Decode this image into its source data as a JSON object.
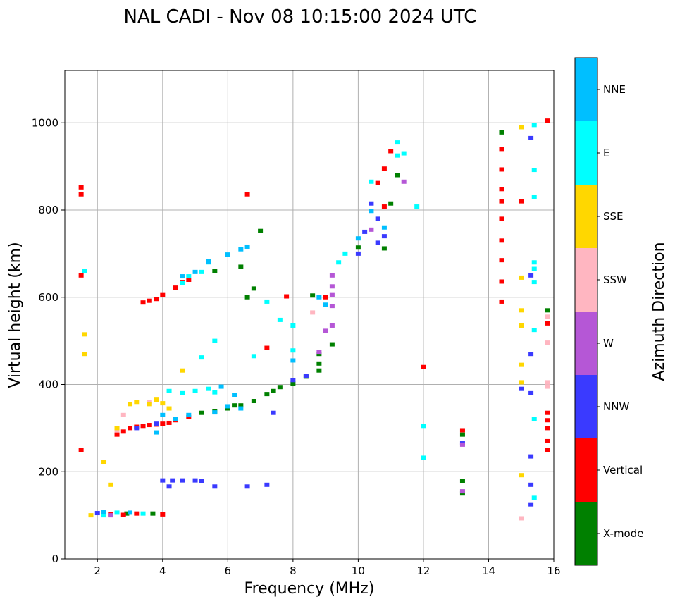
{
  "chart_data": {
    "type": "scatter",
    "title": "NAL CADI - Nov 08 10:15:00 2024 UTC",
    "xlabel": "Frequency (MHz)",
    "ylabel": "Virtual height (km)",
    "xlim": [
      1,
      16
    ],
    "ylim": [
      0,
      1120
    ],
    "xticks": [
      2,
      4,
      6,
      8,
      10,
      12,
      14,
      16
    ],
    "yticks": [
      0,
      200,
      400,
      600,
      800,
      1000
    ],
    "grid": true,
    "colorbar": {
      "label": "Azimuth Direction",
      "placement": "right",
      "categories": [
        {
          "name": "X-mode",
          "color": "#008000"
        },
        {
          "name": "Vertical",
          "color": "#ff0000"
        },
        {
          "name": "NNW",
          "color": "#3a3aff"
        },
        {
          "name": "W",
          "color": "#b557d6"
        },
        {
          "name": "SSW",
          "color": "#ffb6c1"
        },
        {
          "name": "SSE",
          "color": "#ffd700"
        },
        {
          "name": "E",
          "color": "#00ffff"
        },
        {
          "name": "NNE",
          "color": "#00bfff"
        }
      ]
    },
    "series": [
      {
        "name": "X-mode",
        "points": [
          [
            5.2,
            335
          ],
          [
            5.6,
            338
          ],
          [
            6.0,
            345
          ],
          [
            6.4,
            352
          ],
          [
            6.8,
            362
          ],
          [
            7.2,
            378
          ],
          [
            7.6,
            394
          ],
          [
            8.0,
            402
          ],
          [
            8.4,
            418
          ],
          [
            8.8,
            432
          ],
          [
            8.8,
            448
          ],
          [
            8.8,
            470
          ],
          [
            9.2,
            492
          ],
          [
            6.6,
            600
          ],
          [
            6.8,
            620
          ],
          [
            6.4,
            670
          ],
          [
            5.6,
            660
          ],
          [
            7.0,
            752
          ],
          [
            10.0,
            714
          ],
          [
            10.8,
            712
          ],
          [
            11.0,
            815
          ],
          [
            11.2,
            880
          ],
          [
            14.4,
            978
          ],
          [
            15.8,
            570
          ],
          [
            13.2,
            285
          ],
          [
            13.2,
            178
          ],
          [
            13.2,
            150
          ],
          [
            2.9,
            104
          ],
          [
            3.7,
            104
          ],
          [
            8.6,
            604
          ],
          [
            6.2,
            352
          ],
          [
            7.4,
            385
          ]
        ]
      },
      {
        "name": "Vertical",
        "points": [
          [
            1.5,
            852
          ],
          [
            1.5,
            836
          ],
          [
            1.5,
            650
          ],
          [
            1.5,
            250
          ],
          [
            2.6,
            285
          ],
          [
            2.8,
            292
          ],
          [
            3.0,
            300
          ],
          [
            3.2,
            303
          ],
          [
            3.4,
            305
          ],
          [
            3.6,
            307
          ],
          [
            3.8,
            308
          ],
          [
            4.0,
            310
          ],
          [
            4.2,
            312
          ],
          [
            4.4,
            318
          ],
          [
            4.8,
            325
          ],
          [
            3.4,
            588
          ],
          [
            3.6,
            592
          ],
          [
            3.8,
            596
          ],
          [
            4.0,
            605
          ],
          [
            4.4,
            622
          ],
          [
            4.6,
            635
          ],
          [
            4.8,
            640
          ],
          [
            2.4,
            102
          ],
          [
            2.8,
            101
          ],
          [
            3.2,
            104
          ],
          [
            4.0,
            102
          ],
          [
            6.6,
            836
          ],
          [
            7.8,
            602
          ],
          [
            9.0,
            600
          ],
          [
            10.6,
            862
          ],
          [
            10.8,
            808
          ],
          [
            11.0,
            935
          ],
          [
            10.8,
            895
          ],
          [
            12.0,
            440
          ],
          [
            14.4,
            940
          ],
          [
            14.4,
            893
          ],
          [
            14.4,
            848
          ],
          [
            14.4,
            820
          ],
          [
            14.4,
            780
          ],
          [
            14.4,
            730
          ],
          [
            14.4,
            685
          ],
          [
            14.4,
            636
          ],
          [
            14.4,
            590
          ],
          [
            15.0,
            820
          ],
          [
            15.8,
            1005
          ],
          [
            15.8,
            555
          ],
          [
            15.8,
            540
          ],
          [
            15.8,
            335
          ],
          [
            15.8,
            318
          ],
          [
            15.8,
            300
          ],
          [
            15.8,
            270
          ],
          [
            15.8,
            250
          ],
          [
            13.2,
            295
          ],
          [
            7.2,
            484
          ]
        ]
      },
      {
        "name": "NNW",
        "points": [
          [
            3.2,
            300
          ],
          [
            3.8,
            310
          ],
          [
            4.0,
            180
          ],
          [
            4.3,
            180
          ],
          [
            4.6,
            180
          ],
          [
            5.0,
            180
          ],
          [
            5.2,
            178
          ],
          [
            4.2,
            166
          ],
          [
            5.6,
            166
          ],
          [
            6.6,
            166
          ],
          [
            7.2,
            170
          ],
          [
            7.4,
            335
          ],
          [
            8.0,
            410
          ],
          [
            8.4,
            420
          ],
          [
            10.0,
            700
          ],
          [
            10.2,
            750
          ],
          [
            10.4,
            815
          ],
          [
            10.6,
            780
          ],
          [
            10.6,
            725
          ],
          [
            10.8,
            740
          ],
          [
            15.3,
            965
          ],
          [
            15.3,
            650
          ],
          [
            15.3,
            470
          ],
          [
            15.3,
            380
          ],
          [
            15.0,
            390
          ],
          [
            15.3,
            235
          ],
          [
            15.3,
            170
          ],
          [
            15.3,
            125
          ],
          [
            13.2,
            265
          ],
          [
            2.0,
            105
          ]
        ]
      },
      {
        "name": "W",
        "points": [
          [
            9.2,
            650
          ],
          [
            9.2,
            625
          ],
          [
            9.2,
            605
          ],
          [
            9.2,
            580
          ],
          [
            9.0,
            523
          ],
          [
            9.2,
            535
          ],
          [
            10.4,
            755
          ],
          [
            11.4,
            865
          ],
          [
            13.2,
            262
          ],
          [
            13.2,
            155
          ],
          [
            2.4,
            100
          ],
          [
            8.8,
            475
          ]
        ]
      },
      {
        "name": "SSW",
        "points": [
          [
            8.6,
            565
          ],
          [
            15.8,
            555
          ],
          [
            15.8,
            496
          ],
          [
            15.8,
            405
          ],
          [
            15.8,
            395
          ],
          [
            15.0,
            93
          ],
          [
            2.8,
            330
          ],
          [
            2.6,
            295
          ],
          [
            3.6,
            360
          ]
        ]
      },
      {
        "name": "SSE",
        "points": [
          [
            2.2,
            222
          ],
          [
            2.4,
            170
          ],
          [
            3.0,
            355
          ],
          [
            3.2,
            360
          ],
          [
            3.6,
            355
          ],
          [
            3.8,
            365
          ],
          [
            4.0,
            357
          ],
          [
            4.2,
            345
          ],
          [
            4.6,
            432
          ],
          [
            1.6,
            515
          ],
          [
            1.6,
            470
          ],
          [
            15.0,
            990
          ],
          [
            15.0,
            645
          ],
          [
            15.0,
            570
          ],
          [
            15.0,
            535
          ],
          [
            15.0,
            445
          ],
          [
            15.0,
            405
          ],
          [
            15.0,
            192
          ],
          [
            2.6,
            300
          ],
          [
            1.8,
            100
          ]
        ]
      },
      {
        "name": "E",
        "points": [
          [
            1.6,
            660
          ],
          [
            2.2,
            100
          ],
          [
            2.6,
            106
          ],
          [
            3.4,
            104
          ],
          [
            4.2,
            385
          ],
          [
            4.6,
            380
          ],
          [
            5.0,
            385
          ],
          [
            5.4,
            390
          ],
          [
            5.6,
            382
          ],
          [
            5.2,
            462
          ],
          [
            5.6,
            500
          ],
          [
            6.8,
            465
          ],
          [
            7.2,
            590
          ],
          [
            7.6,
            548
          ],
          [
            8.0,
            535
          ],
          [
            8.0,
            478
          ],
          [
            9.4,
            680
          ],
          [
            9.6,
            700
          ],
          [
            10.4,
            865
          ],
          [
            11.2,
            925
          ],
          [
            11.2,
            955
          ],
          [
            11.4,
            930
          ],
          [
            11.8,
            808
          ],
          [
            12.0,
            305
          ],
          [
            12.0,
            232
          ],
          [
            15.4,
            995
          ],
          [
            15.4,
            892
          ],
          [
            15.4,
            830
          ],
          [
            15.4,
            680
          ],
          [
            15.4,
            665
          ],
          [
            15.4,
            635
          ],
          [
            15.4,
            525
          ],
          [
            15.4,
            320
          ],
          [
            15.4,
            140
          ],
          [
            4.6,
            632
          ],
          [
            4.8,
            648
          ],
          [
            5.2,
            658
          ],
          [
            5.4,
            680
          ]
        ]
      },
      {
        "name": "NNE",
        "points": [
          [
            4.6,
            648
          ],
          [
            5.0,
            658
          ],
          [
            5.4,
            682
          ],
          [
            6.0,
            698
          ],
          [
            6.4,
            710
          ],
          [
            6.6,
            716
          ],
          [
            6.0,
            350
          ],
          [
            6.4,
            345
          ],
          [
            5.6,
            336
          ],
          [
            4.8,
            330
          ],
          [
            4.4,
            320
          ],
          [
            4.0,
            330
          ],
          [
            3.8,
            290
          ],
          [
            10.0,
            735
          ],
          [
            10.4,
            798
          ],
          [
            10.8,
            760
          ],
          [
            9.0,
            583
          ],
          [
            8.8,
            600
          ],
          [
            8.0,
            455
          ],
          [
            5.8,
            395
          ],
          [
            6.2,
            375
          ],
          [
            2.2,
            108
          ],
          [
            3.0,
            106
          ]
        ]
      }
    ]
  }
}
